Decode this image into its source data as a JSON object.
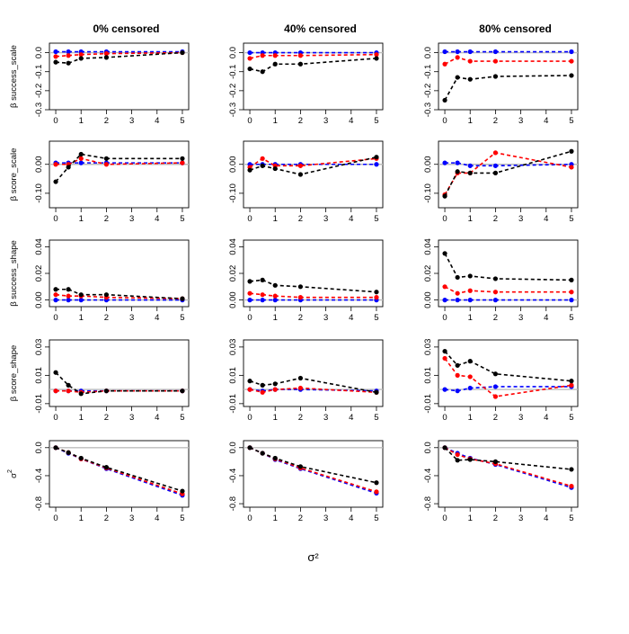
{
  "chart_data": {
    "type": "line",
    "layout": "grid 5 rows x 3 columns",
    "columns": [
      "0% censored",
      "40% censored",
      "80% censored"
    ],
    "x_label": "σ²",
    "x": [
      0,
      0.5,
      1,
      2,
      5
    ],
    "x_ticks": [
      "0",
      "1",
      "2",
      "3",
      "4",
      "5"
    ],
    "series_colors": {
      "black": "#000000",
      "red": "#ff0000",
      "blue": "#0000ff",
      "reference": "#bdbdbd"
    },
    "rows": [
      {
        "label_prefix": "β",
        "label_main": "success_scale",
        "label_sup": "",
        "ylim": [
          -0.3,
          0.05
        ],
        "y_ticks": [
          "0.0",
          "-0.1",
          "-0.2",
          "-0.3"
        ],
        "panels": [
          {
            "black": [
              -0.05,
              -0.055,
              -0.03,
              -0.025,
              0.0
            ],
            "red": [
              -0.02,
              -0.015,
              -0.01,
              -0.005,
              0.0
            ],
            "blue": [
              0.005,
              0.005,
              0.005,
              0.005,
              0.005
            ]
          },
          {
            "black": [
              -0.085,
              -0.1,
              -0.06,
              -0.06,
              -0.03
            ],
            "red": [
              -0.03,
              -0.015,
              -0.015,
              -0.015,
              -0.01
            ],
            "blue": [
              0.0,
              0.0,
              0.0,
              0.0,
              0.0
            ]
          },
          {
            "black": [
              -0.25,
              -0.13,
              -0.14,
              -0.125,
              -0.12
            ],
            "red": [
              -0.06,
              -0.025,
              -0.045,
              -0.045,
              -0.045
            ],
            "blue": [
              0.005,
              0.005,
              0.005,
              0.005,
              0.005
            ]
          }
        ]
      },
      {
        "label_prefix": "β",
        "label_main": "score_scale",
        "label_sup": "",
        "ylim": [
          -0.15,
          0.08
        ],
        "y_ticks": [
          "0.00",
          "-0.10"
        ],
        "panels": [
          {
            "black": [
              -0.06,
              -0.01,
              0.035,
              0.02,
              0.02
            ],
            "red": [
              0.0,
              0.0,
              0.02,
              0.0,
              0.005
            ],
            "blue": [
              0.005,
              0.005,
              0.005,
              0.005,
              0.005
            ]
          },
          {
            "black": [
              -0.02,
              -0.005,
              -0.015,
              -0.035,
              0.025
            ],
            "red": [
              -0.01,
              0.02,
              -0.005,
              -0.005,
              0.02
            ],
            "blue": [
              0.0,
              0.0,
              0.0,
              0.0,
              0.0
            ]
          },
          {
            "black": [
              -0.11,
              -0.025,
              -0.03,
              -0.03,
              0.045
            ],
            "red": [
              -0.105,
              -0.03,
              -0.03,
              0.04,
              -0.01
            ],
            "blue": [
              0.005,
              0.005,
              -0.005,
              -0.005,
              0.0
            ]
          }
        ]
      },
      {
        "label_prefix": "β",
        "label_main": "success_shape",
        "label_sup": "",
        "ylim": [
          -0.005,
          0.045
        ],
        "y_ticks": [
          "0.00",
          "0.02",
          "0.04"
        ],
        "panels": [
          {
            "black": [
              0.008,
              0.008,
              0.004,
              0.004,
              0.001
            ],
            "red": [
              0.004,
              0.003,
              0.003,
              0.002,
              0.001
            ],
            "blue": [
              0.0,
              0.0,
              0.0,
              0.0,
              0.0
            ]
          },
          {
            "black": [
              0.014,
              0.015,
              0.011,
              0.01,
              0.006
            ],
            "red": [
              0.005,
              0.004,
              0.003,
              0.002,
              0.002
            ],
            "blue": [
              0.0,
              0.0,
              0.0,
              0.0,
              0.0
            ]
          },
          {
            "black": [
              0.035,
              0.017,
              0.018,
              0.016,
              0.015
            ],
            "red": [
              0.01,
              0.005,
              0.007,
              0.006,
              0.006
            ],
            "blue": [
              0.0,
              0.0,
              0.0,
              0.0,
              0.0
            ]
          }
        ]
      },
      {
        "label_prefix": "β",
        "label_main": "score_shape",
        "label_sup": "",
        "ylim": [
          -0.012,
          0.035
        ],
        "y_ticks": [
          "-0.01",
          "0.01",
          "0.03"
        ],
        "panels": [
          {
            "black": [
              0.012,
              0.003,
              -0.003,
              -0.001,
              -0.001
            ],
            "red": [
              -0.001,
              -0.001,
              -0.002,
              -0.001,
              -0.001
            ],
            "blue": [
              -0.001,
              -0.001,
              -0.001,
              -0.001,
              -0.001
            ]
          },
          {
            "black": [
              0.006,
              0.003,
              0.004,
              0.008,
              -0.002
            ],
            "red": [
              0.0,
              -0.002,
              0.0,
              0.001,
              -0.002
            ],
            "blue": [
              0.0,
              -0.001,
              0.0,
              0.0,
              -0.001
            ]
          },
          {
            "black": [
              0.027,
              0.017,
              0.02,
              0.011,
              0.006
            ],
            "red": [
              0.022,
              0.01,
              0.009,
              -0.005,
              0.003
            ],
            "blue": [
              0.0,
              -0.001,
              0.001,
              0.002,
              0.002
            ]
          }
        ]
      },
      {
        "label_prefix": "",
        "label_main": "σ",
        "label_sup": "2",
        "ylim": [
          -0.85,
          0.1
        ],
        "y_ticks": [
          "0.0",
          "-0.4",
          "-0.8"
        ],
        "panels": [
          {
            "black": [
              0.0,
              -0.07,
              -0.15,
              -0.28,
              -0.62
            ],
            "red": [
              0.0,
              -0.07,
              -0.16,
              -0.29,
              -0.66
            ],
            "blue": [
              0.0,
              -0.08,
              -0.16,
              -0.3,
              -0.68
            ]
          },
          {
            "black": [
              0.0,
              -0.08,
              -0.15,
              -0.27,
              -0.5
            ],
            "red": [
              0.0,
              -0.08,
              -0.16,
              -0.29,
              -0.63
            ],
            "blue": [
              0.0,
              -0.08,
              -0.17,
              -0.3,
              -0.65
            ]
          },
          {
            "black": [
              0.0,
              -0.18,
              -0.17,
              -0.2,
              -0.31
            ],
            "red": [
              0.0,
              -0.1,
              -0.16,
              -0.23,
              -0.55
            ],
            "blue": [
              0.0,
              -0.08,
              -0.15,
              -0.24,
              -0.57
            ]
          }
        ]
      }
    ]
  }
}
